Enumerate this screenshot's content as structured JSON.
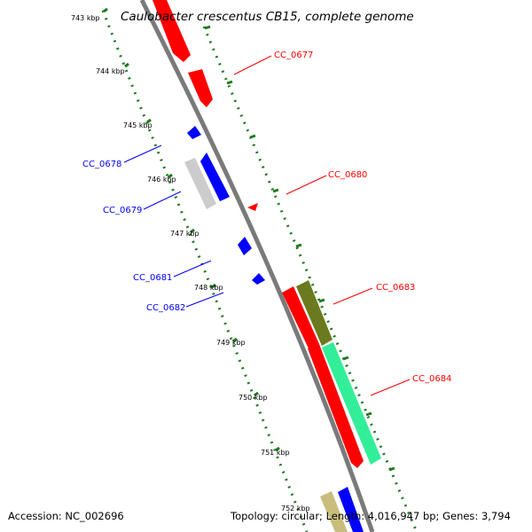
{
  "title": "Caulobacter crescentus CB15, complete genome",
  "footer": {
    "accession": "Accession: NC_002696",
    "summary": "Topology: circular; Length: 4,016,947 bp; Genes: 3,794"
  },
  "kbp_labels": [
    "743 kbp",
    "744 kbp",
    "745 kbp",
    "746 kbp",
    "747 kbp",
    "748 kbp",
    "749 kbp",
    "750 kbp",
    "751 kbp",
    "752 kbp"
  ],
  "gene_labels": {
    "CC_0677": "CC_0677",
    "CC_0678": "CC_0678",
    "CC_0679": "CC_0679",
    "CC_0680": "CC_0680",
    "CC_0681": "CC_0681",
    "CC_0682": "CC_0682",
    "CC_0683": "CC_0683",
    "CC_0684": "CC_0684"
  },
  "colors": {
    "forward_strand": "#ff0000",
    "reverse_strand": "#0000ff",
    "backbone": "#808080",
    "tick": "#1f7a1f",
    "olive": "#6b7a1e",
    "aqua": "#33ee99",
    "grey_feature": "#cccccc",
    "tan_feature": "#c8bd7d"
  }
}
